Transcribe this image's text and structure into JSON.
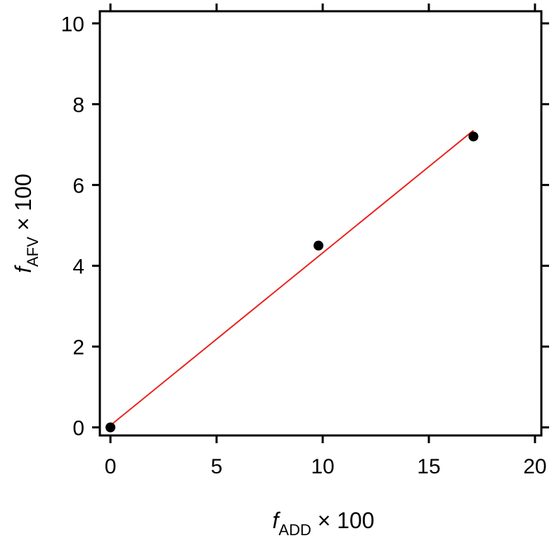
{
  "chart_data": {
    "type": "scatter",
    "title": "",
    "xlabel": {
      "var": "f",
      "sub": "ADD",
      "suffix": " × 100"
    },
    "ylabel": {
      "var": "f",
      "sub": "AFV",
      "suffix": " × 100"
    },
    "xlim": [
      -0.5,
      20.3
    ],
    "ylim": [
      -0.2,
      10.3
    ],
    "x_ticks": [
      0,
      5,
      10,
      15,
      20
    ],
    "y_ticks": [
      0,
      2,
      4,
      6,
      8,
      10
    ],
    "grid": false,
    "points": [
      {
        "x": 0,
        "y": 0
      },
      {
        "x": 9.8,
        "y": 4.5
      },
      {
        "x": 17.1,
        "y": 7.2
      }
    ],
    "fit_line": {
      "x": [
        0,
        17.1
      ],
      "y": [
        0.05,
        7.35
      ],
      "color": "#e8231f"
    },
    "point_color": "#000000"
  }
}
